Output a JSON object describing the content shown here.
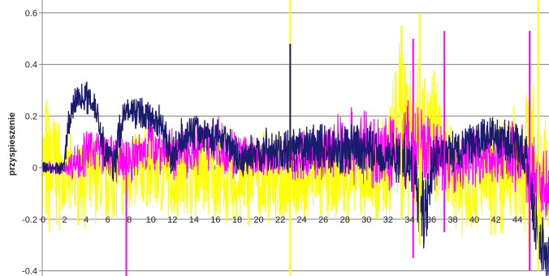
{
  "chart_data": {
    "type": "line",
    "ylabel": "przyspieszenie",
    "xlim": [
      0,
      47
    ],
    "ylim": [
      -0.42,
      0.65
    ],
    "grid": true,
    "yticks": [
      -0.4,
      -0.2,
      0,
      0.2,
      0.4,
      0.6
    ],
    "ytick_labels": [
      "-0.4",
      "-0.2",
      "0",
      "0.2",
      "0.4",
      "0.6"
    ],
    "xticks": [
      0,
      2,
      4,
      6,
      8,
      10,
      12,
      14,
      16,
      18,
      20,
      22,
      24,
      26,
      28,
      30,
      32,
      34,
      36,
      38,
      40,
      42,
      44
    ],
    "xtick_labels": [
      "0",
      "2",
      "4",
      "6",
      "8",
      "10",
      "12",
      "14",
      "16",
      "18",
      "20",
      "22",
      "24",
      "26",
      "28",
      "30",
      "32",
      "34",
      "36",
      "38",
      "40",
      "42",
      "44"
    ],
    "series": [
      {
        "color": "#ffff00",
        "x": [
          0,
          1,
          2,
          3,
          4,
          5,
          6,
          7,
          8,
          9,
          10,
          11,
          12,
          13,
          14,
          15,
          16,
          17,
          18,
          19,
          20,
          21,
          22,
          23,
          24,
          25,
          26,
          27,
          28,
          29,
          30,
          31,
          32,
          33,
          34,
          35,
          36,
          37,
          38,
          39,
          40,
          41,
          42,
          43,
          44,
          45,
          46,
          47
        ],
        "mean": [
          0.0,
          0.0,
          -0.05,
          -0.06,
          -0.05,
          -0.04,
          -0.05,
          -0.03,
          -0.02,
          0.0,
          0.0,
          -0.02,
          -0.04,
          -0.02,
          -0.02,
          -0.02,
          -0.03,
          -0.05,
          -0.08,
          -0.05,
          -0.05,
          -0.05,
          -0.05,
          -0.05,
          -0.06,
          -0.04,
          -0.04,
          -0.05,
          -0.04,
          -0.04,
          -0.05,
          -0.05,
          0.05,
          0.15,
          0.18,
          0.15,
          0.12,
          0.05,
          -0.05,
          -0.06,
          -0.06,
          -0.04,
          -0.04,
          -0.04,
          0.0,
          0.05,
          -0.05,
          -0.05
        ],
        "amp": [
          0.24,
          0.24,
          0.14,
          0.14,
          0.14,
          0.14,
          0.14,
          0.14,
          0.14,
          0.14,
          0.14,
          0.14,
          0.14,
          0.14,
          0.14,
          0.14,
          0.14,
          0.14,
          0.14,
          0.14,
          0.14,
          0.14,
          0.14,
          0.14,
          0.14,
          0.14,
          0.14,
          0.14,
          0.14,
          0.14,
          0.14,
          0.14,
          0.22,
          0.28,
          0.32,
          0.28,
          0.25,
          0.2,
          0.16,
          0.16,
          0.16,
          0.16,
          0.18,
          0.2,
          0.22,
          0.28,
          0.25,
          0.22
        ]
      },
      {
        "color": "#ff00ff",
        "x": [
          0,
          2,
          3,
          4,
          5,
          6,
          7,
          8,
          9,
          10,
          12,
          14,
          16,
          18,
          20,
          22,
          24,
          26,
          28,
          30,
          32,
          34,
          36,
          38,
          40,
          42,
          44,
          46,
          47
        ],
        "mean": [
          0.0,
          0.0,
          0.02,
          0.05,
          0.08,
          0.05,
          0.02,
          0.03,
          0.05,
          0.1,
          0.05,
          0.07,
          0.1,
          0.05,
          0.03,
          0.03,
          0.04,
          0.06,
          0.1,
          0.08,
          0.05,
          0.08,
          0.05,
          0.0,
          0.05,
          0.05,
          0.05,
          -0.05,
          -0.08
        ],
        "amp": [
          0.02,
          0.02,
          0.06,
          0.08,
          0.08,
          0.06,
          0.08,
          0.08,
          0.08,
          0.1,
          0.08,
          0.08,
          0.1,
          0.08,
          0.06,
          0.06,
          0.08,
          0.08,
          0.12,
          0.12,
          0.12,
          0.16,
          0.14,
          0.1,
          0.1,
          0.1,
          0.12,
          0.12,
          0.12
        ]
      },
      {
        "color": "#1a1a6e",
        "x": [
          0,
          1,
          2,
          2.5,
          3,
          4,
          5,
          5.5,
          6,
          6.5,
          7,
          7.5,
          8,
          9,
          10,
          11,
          11.7,
          12,
          12.5,
          13,
          14,
          15,
          16,
          17,
          17.8,
          18.3,
          19,
          20,
          21,
          22,
          23,
          24,
          25,
          26,
          27,
          28,
          29,
          30,
          31,
          32,
          33,
          34,
          35,
          35.5,
          36,
          36.5,
          37,
          38,
          39,
          40,
          41,
          42,
          43,
          44,
          45,
          45.5,
          46,
          47
        ],
        "mean": [
          0.0,
          0.0,
          0.0,
          0.18,
          0.26,
          0.28,
          0.24,
          0.12,
          0.05,
          0.02,
          0.08,
          0.2,
          0.22,
          0.21,
          0.2,
          0.18,
          0.1,
          0.02,
          0.08,
          0.12,
          0.14,
          0.13,
          0.12,
          0.12,
          0.06,
          0.02,
          0.04,
          0.06,
          0.07,
          0.06,
          0.06,
          0.07,
          0.08,
          0.08,
          0.07,
          0.06,
          0.08,
          0.07,
          0.06,
          0.05,
          0.04,
          0.03,
          -0.1,
          -0.18,
          -0.02,
          0.05,
          0.05,
          0.06,
          0.07,
          0.1,
          0.12,
          0.12,
          0.1,
          0.08,
          0.02,
          -0.15,
          -0.28,
          -0.32
        ],
        "amp": [
          0.02,
          0.02,
          0.03,
          0.06,
          0.05,
          0.05,
          0.05,
          0.07,
          0.06,
          0.06,
          0.08,
          0.06,
          0.05,
          0.05,
          0.05,
          0.06,
          0.08,
          0.06,
          0.06,
          0.06,
          0.06,
          0.06,
          0.06,
          0.06,
          0.06,
          0.05,
          0.06,
          0.07,
          0.07,
          0.07,
          0.07,
          0.07,
          0.08,
          0.08,
          0.08,
          0.08,
          0.08,
          0.08,
          0.08,
          0.08,
          0.08,
          0.1,
          0.12,
          0.12,
          0.1,
          0.08,
          0.07,
          0.07,
          0.07,
          0.07,
          0.07,
          0.07,
          0.07,
          0.07,
          0.08,
          0.1,
          0.1,
          0.1
        ]
      }
    ],
    "spikes": [
      {
        "color": "#ffff00",
        "x": 23.0,
        "y1": -0.45,
        "y2": 0.67
      },
      {
        "color": "#1a1a6e",
        "x": 23.0,
        "y1": 0.0,
        "y2": 0.48
      },
      {
        "color": "#ffff00",
        "x": 33.3,
        "y1": -0.2,
        "y2": 0.55
      },
      {
        "color": "#ffff00",
        "x": 35.0,
        "y1": -0.3,
        "y2": 0.6
      },
      {
        "color": "#ff00ff",
        "x": 34.4,
        "y1": -0.35,
        "y2": 0.5
      },
      {
        "color": "#ff00ff",
        "x": 37.3,
        "y1": -0.25,
        "y2": 0.53
      },
      {
        "color": "#ff00ff",
        "x": 45.2,
        "y1": -0.4,
        "y2": 0.53
      },
      {
        "color": "#ffff00",
        "x": 46.0,
        "y1": -0.4,
        "y2": 0.67
      },
      {
        "color": "#ff00ff",
        "x": 7.8,
        "y1": -0.43,
        "y2": 0.1
      }
    ]
  }
}
